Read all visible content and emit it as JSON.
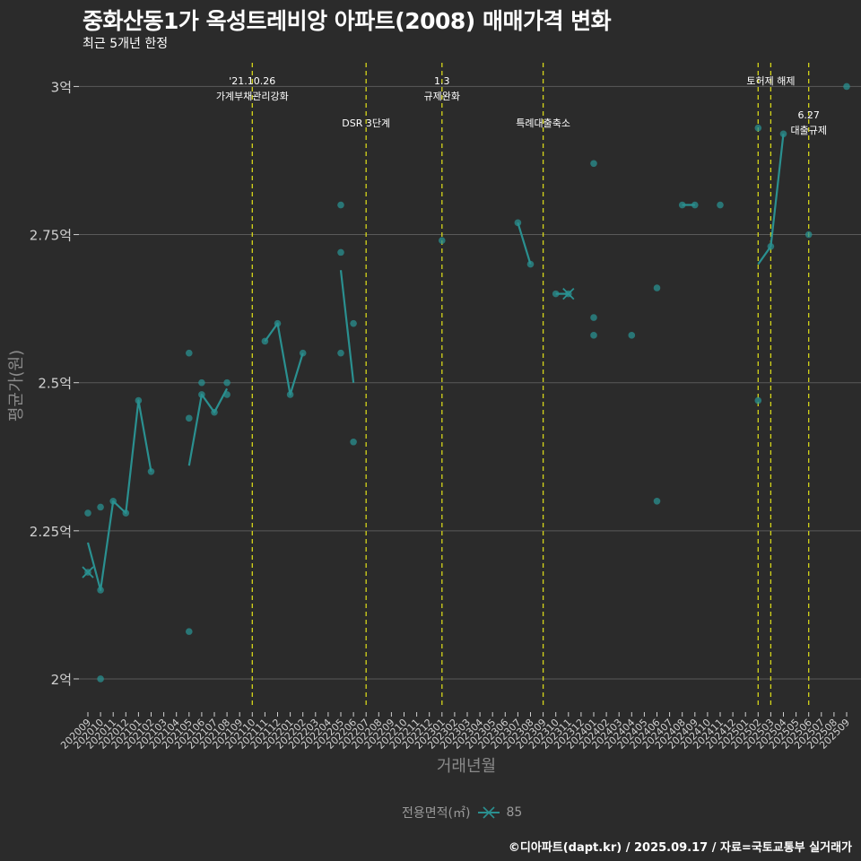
{
  "chart_data": {
    "type": "line",
    "title": "중화산동1가 옥성트레비앙 아파트(2008) 매매가격 변화",
    "subtitle": "최근 5개년 한정",
    "xlabel": "거래년월",
    "ylabel": "평균가(원)",
    "ylim": [
      1.95,
      3.04
    ],
    "y_ticks": [
      2.0,
      2.25,
      2.5,
      2.75,
      3.0
    ],
    "y_tick_labels": [
      "2억",
      "2.25억",
      "2.5억",
      "2.75억",
      "3억"
    ],
    "categories": [
      "202009",
      "202010",
      "202011",
      "202012",
      "202101",
      "202102",
      "202103",
      "202104",
      "202105",
      "202106",
      "202107",
      "202108",
      "202109",
      "202110",
      "202111",
      "202112",
      "202201",
      "202202",
      "202203",
      "202204",
      "202205",
      "202206",
      "202207",
      "202208",
      "202209",
      "202210",
      "202211",
      "202212",
      "202301",
      "202302",
      "202303",
      "202304",
      "202305",
      "202306",
      "202307",
      "202308",
      "202309",
      "202310",
      "202311",
      "202312",
      "202401",
      "202402",
      "202403",
      "202404",
      "202405",
      "202406",
      "202407",
      "202408",
      "202409",
      "202410",
      "202411",
      "202412",
      "202501",
      "202502",
      "202503",
      "202504",
      "202505",
      "202506",
      "202507",
      "202508",
      "202509"
    ],
    "series": [
      {
        "name": "85",
        "color": "#2a9090",
        "line_segments": [
          [
            [
              "202009",
              2.23
            ],
            [
              "202010",
              2.15
            ],
            [
              "202011",
              2.3
            ],
            [
              "202012",
              2.28
            ],
            [
              "202101",
              2.47
            ],
            [
              "202102",
              2.35
            ]
          ],
          [
            [
              "202105",
              2.36
            ],
            [
              "202106",
              2.48
            ],
            [
              "202107",
              2.45
            ],
            [
              "202108",
              2.49
            ]
          ],
          [
            [
              "202111",
              2.57
            ],
            [
              "202112",
              2.6
            ],
            [
              "202201",
              2.48
            ],
            [
              "202202",
              2.55
            ]
          ],
          [
            [
              "202205",
              2.69
            ],
            [
              "202206",
              2.5
            ]
          ],
          [
            [
              "202307",
              2.77
            ],
            [
              "202308",
              2.7
            ]
          ],
          [
            [
              "202310",
              2.65
            ],
            [
              "202311",
              2.65
            ]
          ],
          [
            [
              "202408",
              2.8
            ],
            [
              "202409",
              2.8
            ]
          ],
          [
            [
              "202502",
              2.7
            ],
            [
              "202503",
              2.73
            ],
            [
              "202504",
              2.92
            ]
          ]
        ],
        "points": [
          [
            "202009",
            2.28
          ],
          [
            "202009",
            2.18
          ],
          [
            "202010",
            2.29
          ],
          [
            "202010",
            2.15
          ],
          [
            "202010",
            2.0
          ],
          [
            "202011",
            2.3
          ],
          [
            "202012",
            2.28
          ],
          [
            "202101",
            2.47
          ],
          [
            "202102",
            2.35
          ],
          [
            "202105",
            2.55
          ],
          [
            "202105",
            2.44
          ],
          [
            "202105",
            2.08
          ],
          [
            "202106",
            2.5
          ],
          [
            "202106",
            2.48
          ],
          [
            "202107",
            2.45
          ],
          [
            "202108",
            2.5
          ],
          [
            "202108",
            2.48
          ],
          [
            "202111",
            2.57
          ],
          [
            "202112",
            2.6
          ],
          [
            "202201",
            2.48
          ],
          [
            "202202",
            2.55
          ],
          [
            "202205",
            2.8
          ],
          [
            "202205",
            2.72
          ],
          [
            "202205",
            2.55
          ],
          [
            "202206",
            2.6
          ],
          [
            "202206",
            2.4
          ],
          [
            "202301",
            2.74
          ],
          [
            "202307",
            2.77
          ],
          [
            "202308",
            2.7
          ],
          [
            "202310",
            2.65
          ],
          [
            "202311",
            2.65
          ],
          [
            "202401",
            2.87
          ],
          [
            "202401",
            2.61
          ],
          [
            "202401",
            2.58
          ],
          [
            "202404",
            2.58
          ],
          [
            "202406",
            2.66
          ],
          [
            "202406",
            2.3
          ],
          [
            "202408",
            2.8
          ],
          [
            "202409",
            2.8
          ],
          [
            "202411",
            2.8
          ],
          [
            "202502",
            2.93
          ],
          [
            "202502",
            2.47
          ],
          [
            "202503",
            2.73
          ],
          [
            "202504",
            2.92
          ],
          [
            "202506",
            2.75
          ],
          [
            "202509",
            3.0
          ]
        ],
        "cross_points": [
          [
            "202009",
            2.18
          ],
          [
            "202311",
            2.65
          ]
        ]
      }
    ],
    "events": [
      {
        "x": "202110",
        "lines": [
          "'21.10.26",
          "가계부채관리강화"
        ],
        "level": 1
      },
      {
        "x": "202207",
        "lines": [
          "DSR 3단계"
        ],
        "level": 2
      },
      {
        "x": "202301",
        "lines": [
          "1.3",
          "규제완화"
        ],
        "level": 1
      },
      {
        "x": "202309",
        "lines": [
          "특례대출축소"
        ],
        "level": 2
      },
      {
        "x": "202502",
        "lines": [],
        "level": 0
      },
      {
        "x": "202503",
        "lines": [
          "토허제 해제"
        ],
        "level": 1
      },
      {
        "x": "202506",
        "lines": [
          "6.27",
          "대출규제"
        ],
        "level": 3
      }
    ],
    "legend_title": "전용면적(㎡)",
    "legend_label": "85",
    "legend_position": "bottom",
    "grid": true
  },
  "caption": "©디아파트(dapt.kr) / 2025.09.17 / 자료=국토교통부 실거래가",
  "colors": {
    "background": "#2b2b2b",
    "gridline": "#5a5a5a",
    "event_line": "#d6d61a",
    "series": "#2a9090",
    "axis_text": "#d0d0d0",
    "label_text": "#8a8a8a"
  }
}
